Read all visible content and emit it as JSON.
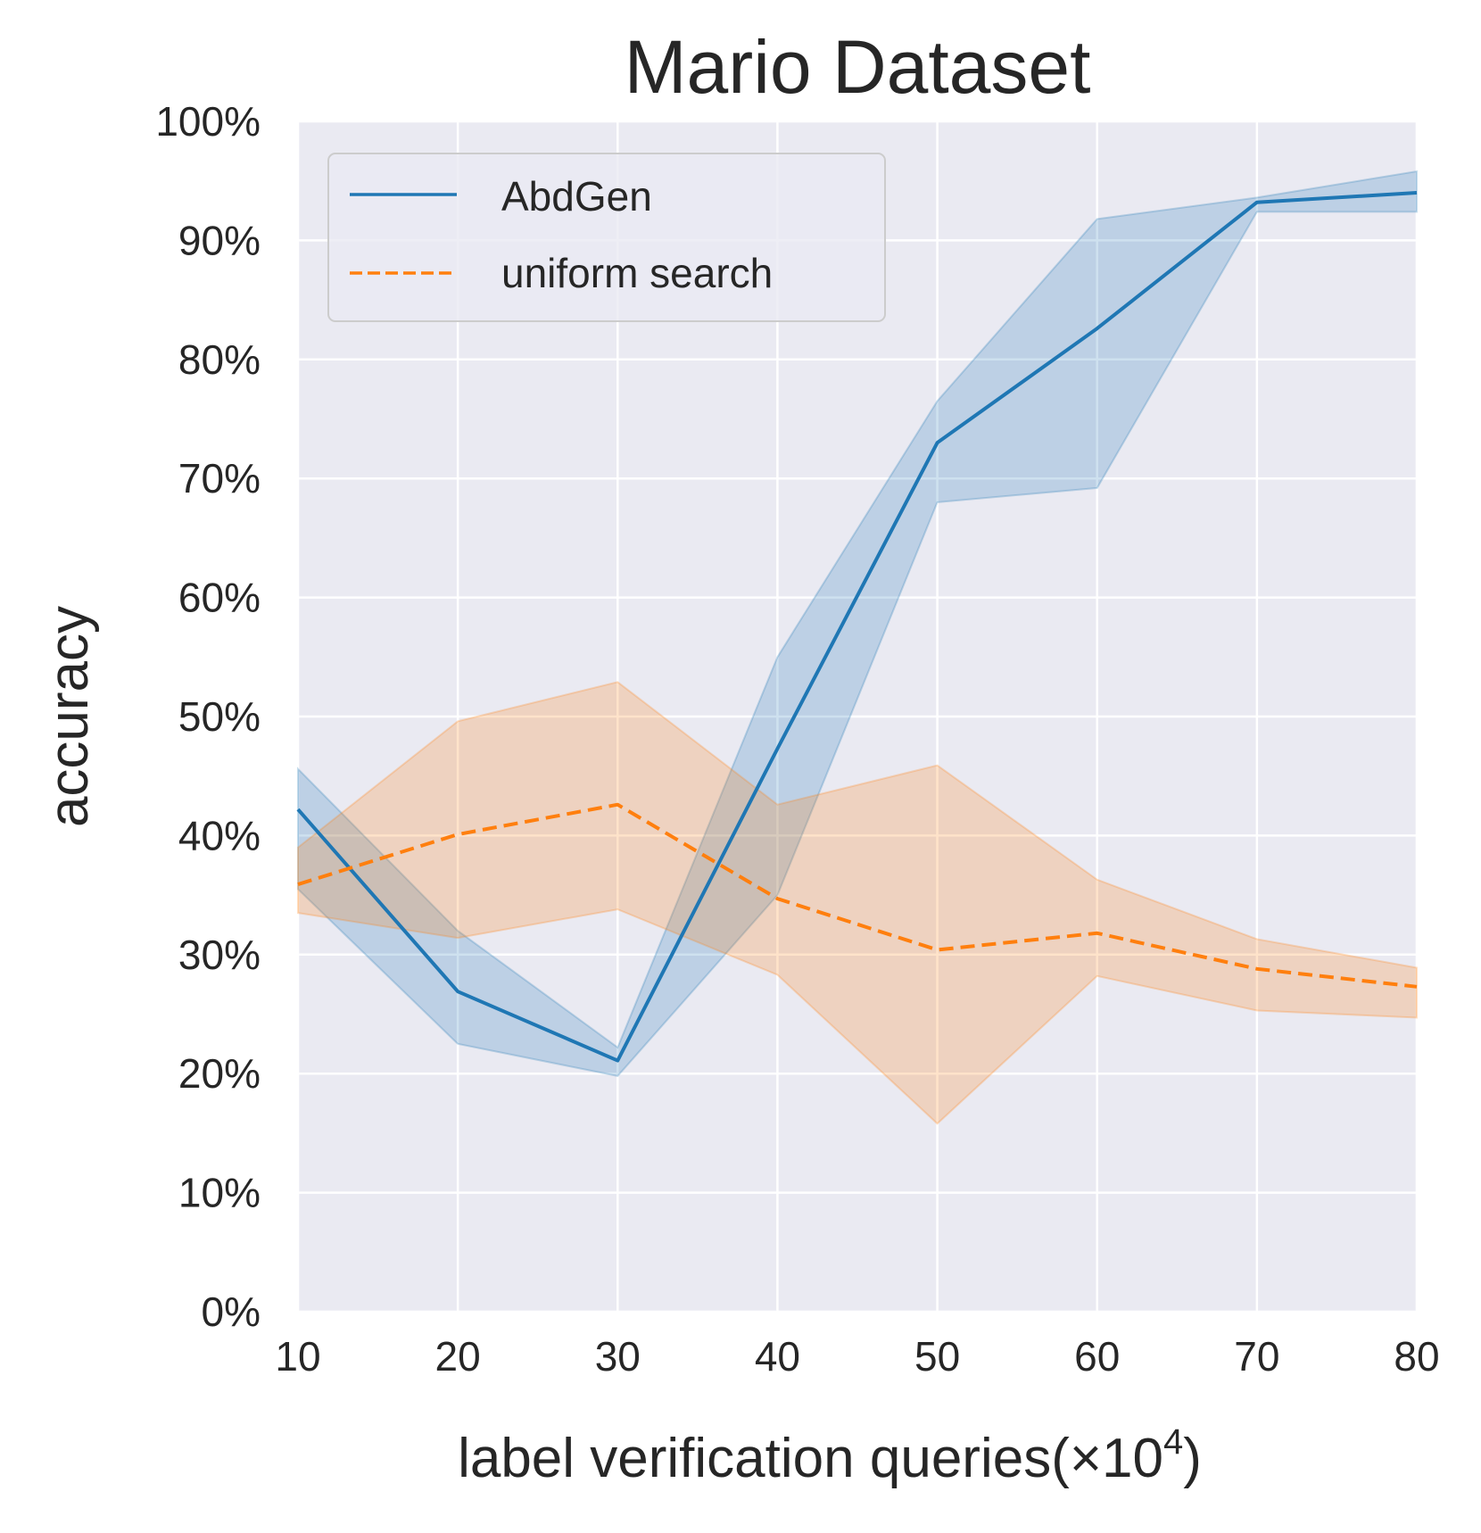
{
  "chart_data": {
    "type": "line",
    "title": "Mario Dataset",
    "xlabel": "label verification queries(×10",
    "xlabel_exponent": "4",
    "xlabel_suffix": ")",
    "ylabel": "accuracy",
    "x": [
      10,
      20,
      30,
      40,
      50,
      60,
      70,
      80
    ],
    "xlim": [
      10,
      80
    ],
    "ylim": [
      0,
      100
    ],
    "x_tick_labels": [
      "10",
      "20",
      "30",
      "40",
      "50",
      "60",
      "70",
      "80"
    ],
    "y_tick_values": [
      0,
      10,
      20,
      30,
      40,
      50,
      60,
      70,
      80,
      90,
      100
    ],
    "y_tick_labels": [
      "0%",
      "10%",
      "20%",
      "30%",
      "40%",
      "50%",
      "60%",
      "70%",
      "80%",
      "90%",
      "100%"
    ],
    "grid": true,
    "legend_position": "top-left",
    "plot_background": "#eaeaf2",
    "series": [
      {
        "name": "AbdGen",
        "color": "#1f77b4",
        "line_style": "solid",
        "values": [
          42.2,
          26.9,
          21.1,
          47.3,
          73.0,
          82.6,
          93.2,
          94.0
        ],
        "lower": [
          35.5,
          22.5,
          19.8,
          35.0,
          68.0,
          69.2,
          92.4,
          92.4
        ],
        "upper": [
          45.6,
          32.0,
          22.2,
          55.0,
          76.5,
          91.8,
          93.6,
          95.8
        ]
      },
      {
        "name": "uniform search",
        "color": "#ff7f0e",
        "line_style": "dashed",
        "values": [
          35.9,
          40.1,
          42.6,
          34.7,
          30.4,
          31.8,
          28.8,
          27.3
        ],
        "lower": [
          33.5,
          31.4,
          33.8,
          28.3,
          15.8,
          28.2,
          25.3,
          24.7
        ],
        "upper": [
          39.0,
          49.6,
          52.9,
          42.6,
          45.9,
          36.3,
          31.3,
          28.9
        ]
      }
    ]
  }
}
